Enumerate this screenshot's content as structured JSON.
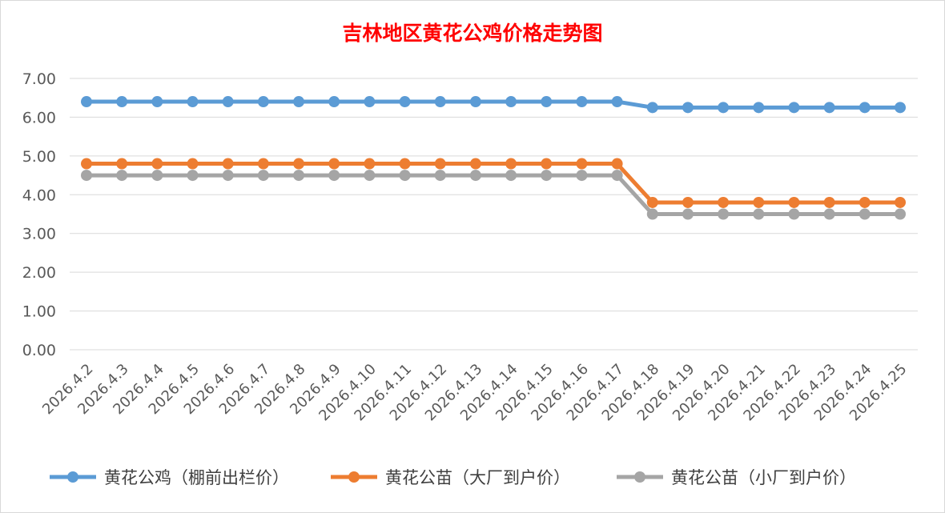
{
  "chart_data": {
    "type": "line",
    "title": "吉林地区黄花公鸡价格走势图",
    "title_color": "#FF0000",
    "xlabel": "",
    "ylabel": "",
    "ylim": [
      0,
      7
    ],
    "y_ticks": [
      "0.00",
      "1.00",
      "2.00",
      "3.00",
      "4.00",
      "5.00",
      "6.00",
      "7.00"
    ],
    "grid": "horizontal",
    "legend_position": "bottom",
    "categories": [
      "2026.4.2",
      "2026.4.3",
      "2026.4.4",
      "2026.4.5",
      "2026.4.6",
      "2026.4.7",
      "2026.4.8",
      "2026.4.9",
      "2026.4.10",
      "2026.4.11",
      "2026.4.12",
      "2026.4.13",
      "2026.4.14",
      "2026.4.15",
      "2026.4.16",
      "2026.4.17",
      "2026.4.18",
      "2026.4.19",
      "2026.4.20",
      "2026.4.21",
      "2026.4.22",
      "2026.4.23",
      "2026.4.24",
      "2026.4.25"
    ],
    "series": [
      {
        "name": "黄花公鸡（棚前出栏价）",
        "color": "#5B9BD5",
        "values": [
          6.4,
          6.4,
          6.4,
          6.4,
          6.4,
          6.4,
          6.4,
          6.4,
          6.4,
          6.4,
          6.4,
          6.4,
          6.4,
          6.4,
          6.4,
          6.4,
          6.25,
          6.25,
          6.25,
          6.25,
          6.25,
          6.25,
          6.25,
          6.25
        ]
      },
      {
        "name": "黄花公苗（大厂到户价）",
        "color": "#ED7D31",
        "values": [
          4.8,
          4.8,
          4.8,
          4.8,
          4.8,
          4.8,
          4.8,
          4.8,
          4.8,
          4.8,
          4.8,
          4.8,
          4.8,
          4.8,
          4.8,
          4.8,
          3.8,
          3.8,
          3.8,
          3.8,
          3.8,
          3.8,
          3.8,
          3.8
        ]
      },
      {
        "name": "黄花公苗（小厂到户价）",
        "color": "#A5A5A5",
        "values": [
          4.5,
          4.5,
          4.5,
          4.5,
          4.5,
          4.5,
          4.5,
          4.5,
          4.5,
          4.5,
          4.5,
          4.5,
          4.5,
          4.5,
          4.5,
          4.5,
          3.5,
          3.5,
          3.5,
          3.5,
          3.5,
          3.5,
          3.5,
          3.5
        ]
      }
    ]
  }
}
